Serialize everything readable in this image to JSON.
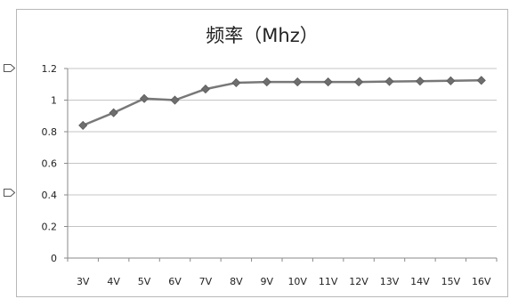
{
  "chart_data": {
    "type": "line",
    "title": "频率（Mhz）",
    "xlabel": "",
    "ylabel": "",
    "categories": [
      "3V",
      "4V",
      "5V",
      "6V",
      "7V",
      "8V",
      "9V",
      "10V",
      "11V",
      "12V",
      "13V",
      "14V",
      "15V",
      "16V"
    ],
    "series": [
      {
        "values": [
          0.84,
          0.92,
          1.01,
          1.0,
          1.07,
          1.11,
          1.115,
          1.115,
          1.115,
          1.115,
          1.118,
          1.12,
          1.122,
          1.125
        ],
        "color": "#787878"
      }
    ],
    "ylim": [
      0,
      1.2
    ],
    "yticks": [
      0,
      0.2,
      0.4,
      0.6,
      0.8,
      1,
      1.2
    ],
    "ytick_labels": [
      "0",
      "0.2",
      "0.4",
      "0.6",
      "0.8",
      "1",
      "1.2"
    ],
    "grid": true,
    "gridline_color": "#c4c4c4",
    "axis_color": "#8a8a8a",
    "marker": "diamond",
    "legend": false
  }
}
